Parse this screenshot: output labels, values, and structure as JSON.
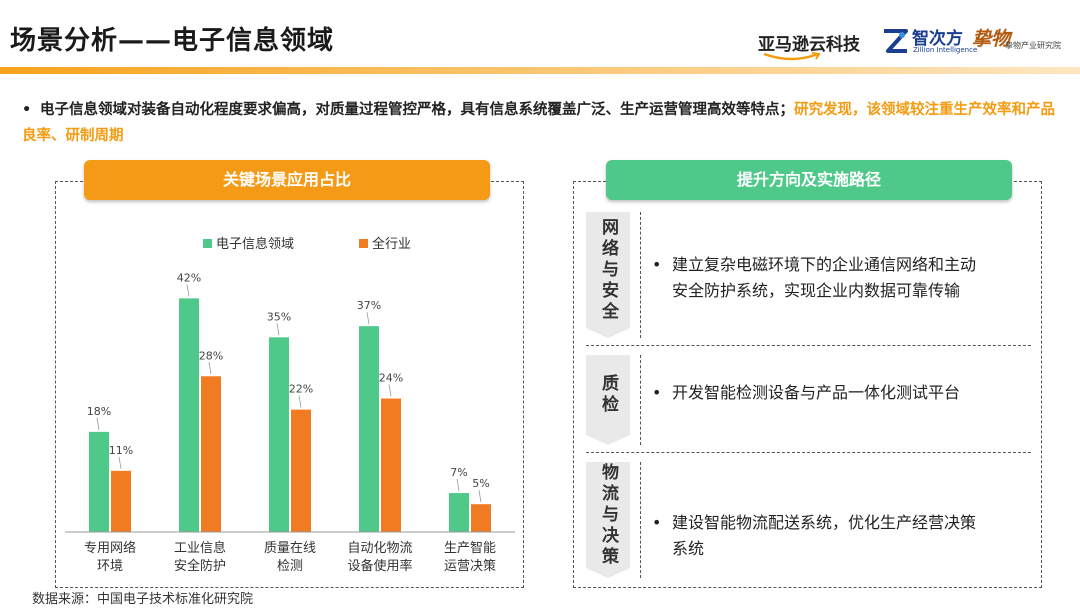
{
  "page": {
    "title": "场景分析——电子信息领域",
    "logos": {
      "amazon": "亚马逊云科技",
      "zhicifang": "智次方",
      "zhicifang_sub": "Zillion Intelligence",
      "stamp": "挚物",
      "institute": "挚物产业研究院"
    },
    "intro": {
      "bullet": "•",
      "text": "电子信息领域对装备自动化程度要求偏高，对质量过程管控严格，具有信息系统覆盖广泛、生产运营管理高效等特点；",
      "highlight": "研究发现，该领域较注重生产效率和产品良率、研制周期"
    },
    "left_panel": {
      "banner": "关键场景应用占比"
    },
    "right_panel": {
      "banner": "提升方向及实施路径",
      "sections": [
        {
          "tag": "网络与安全",
          "bullet": "•",
          "text_line1": "建立复杂电磁环境下的企业通信网络和主动",
          "text_line2": "安全防护系统，实现企业内数据可靠传输"
        },
        {
          "tag": "质检",
          "bullet": "•",
          "text_line1": "开发智能检测设备与产品一体化测试平台",
          "text_line2": ""
        },
        {
          "tag": "物流与决策",
          "bullet": "•",
          "text_line1": "建设智能物流配送系统，优化生产经营决策",
          "text_line2": "系统"
        }
      ]
    },
    "source": "数据来源：中国电子技术标准化研究院"
  },
  "colors": {
    "green": "#4ec98a",
    "orange": "#f07b22",
    "banner_orange": "#f59a17",
    "banner_green": "#4ec98a"
  },
  "chart_data": {
    "type": "bar",
    "title": "关键场景应用占比",
    "categories": [
      [
        "专用网络",
        "环境"
      ],
      [
        "工业信息",
        "安全防护"
      ],
      [
        "质量在线",
        "检测"
      ],
      [
        "自动化物流",
        "设备使用率"
      ],
      [
        "生产智能",
        "运营决策"
      ]
    ],
    "series": [
      {
        "name": "电子信息领域",
        "color": "#4ec98a",
        "values": [
          18,
          42,
          35,
          37,
          7
        ],
        "labels": [
          "18%",
          "42%",
          "35%",
          "37%",
          "7%"
        ]
      },
      {
        "name": "全行业",
        "color": "#f07b22",
        "values": [
          11,
          28,
          22,
          24,
          5
        ],
        "labels": [
          "11%",
          "28%",
          "22%",
          "24%",
          "5%"
        ]
      }
    ],
    "ylim": [
      0,
      48
    ],
    "legend": "top",
    "grid": false
  }
}
